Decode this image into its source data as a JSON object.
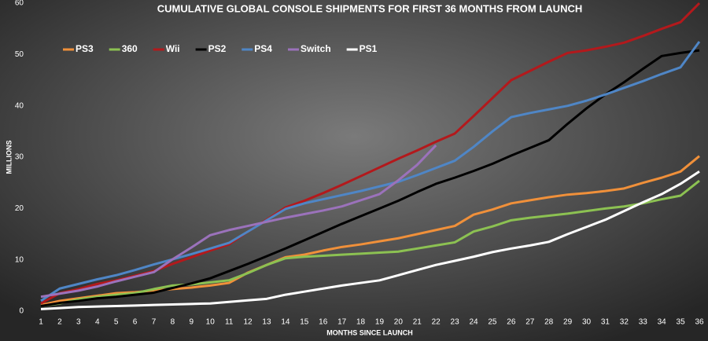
{
  "chart_data": {
    "type": "line",
    "title": "CUMULATIVE GLOBAL CONSOLE SHIPMENTS FOR FIRST 36 MONTHS FROM LAUNCH",
    "x_label": "MONTHS SINCE LAUNCH",
    "y_label": "MILLIONS",
    "x": [
      1,
      2,
      3,
      4,
      5,
      6,
      7,
      8,
      9,
      10,
      11,
      12,
      13,
      14,
      15,
      16,
      17,
      18,
      19,
      20,
      21,
      22,
      23,
      24,
      25,
      26,
      27,
      28,
      29,
      30,
      31,
      32,
      33,
      34,
      35,
      36
    ],
    "xlim": [
      1,
      36
    ],
    "xticks": [
      1,
      2,
      3,
      4,
      5,
      6,
      7,
      8,
      9,
      10,
      11,
      12,
      13,
      14,
      15,
      16,
      17,
      18,
      19,
      20,
      21,
      22,
      23,
      24,
      25,
      26,
      27,
      28,
      29,
      30,
      31,
      32,
      33,
      34,
      35,
      36
    ],
    "ylim": [
      0,
      60
    ],
    "yticks": [
      0,
      10,
      20,
      30,
      40,
      50,
      60
    ],
    "grid": false,
    "legend": "upper left",
    "series": [
      {
        "name": "PS3",
        "color": "#f0903a",
        "values": [
          1.2,
          2,
          2.5,
          3,
          3.5,
          3.7,
          4,
          4.3,
          4.6,
          5,
          5.5,
          7.5,
          9,
          10.5,
          11,
          11.8,
          12.5,
          13,
          13.6,
          14.2,
          15,
          15.8,
          16.6,
          18.8,
          19.8,
          21,
          21.6,
          22.2,
          22.7,
          23,
          23.4,
          23.9,
          25,
          26,
          27.2,
          30.2
        ]
      },
      {
        "name": "360",
        "color": "#8cc152",
        "values": [
          1,
          1.5,
          2.3,
          2.8,
          3.2,
          3.5,
          4.3,
          5,
          5.2,
          5.6,
          6,
          7.4,
          9,
          10.3,
          10.6,
          10.8,
          11,
          11.2,
          11.4,
          11.6,
          12.2,
          12.8,
          13.4,
          15.5,
          16.5,
          17.7,
          18.2,
          18.6,
          19,
          19.5,
          20,
          20.4,
          21,
          21.8,
          22.5,
          25.4
        ]
      },
      {
        "name": "Wii",
        "color": "#b3191c",
        "values": [
          1.5,
          3.5,
          4.3,
          5.3,
          6,
          6.9,
          7.8,
          9.2,
          10.5,
          11.8,
          13,
          15.5,
          17.8,
          20.2,
          21.5,
          23,
          24.6,
          26.3,
          28,
          29.7,
          31.3,
          33,
          34.6,
          38,
          41.5,
          45,
          46.8,
          48.6,
          50.3,
          50.8,
          51.5,
          52.3,
          53.6,
          55,
          56.3,
          60
        ]
      },
      {
        "name": "PS2",
        "color": "#000000",
        "values": [
          1,
          1.6,
          2,
          2.5,
          2.8,
          3.2,
          3.6,
          4.5,
          5.4,
          6.4,
          7.8,
          9.2,
          10.7,
          12.2,
          13.8,
          15.4,
          17,
          18.5,
          20,
          21.5,
          23.2,
          24.8,
          26,
          27.3,
          28.7,
          30.3,
          31.8,
          33.3,
          36.5,
          39.5,
          42.2,
          44.6,
          47.2,
          49.7,
          50.3,
          50.8
        ]
      },
      {
        "name": "PS4",
        "color": "#4f86c6",
        "values": [
          2,
          4.4,
          5.3,
          6.2,
          7,
          8,
          9.1,
          10.1,
          11.1,
          12.2,
          13.3,
          15.5,
          17.7,
          19.9,
          21,
          21.8,
          22.6,
          23.4,
          24.3,
          25.2,
          26.5,
          27.9,
          29.3,
          32,
          35,
          37.8,
          38.6,
          39.3,
          40,
          41,
          42.2,
          43.5,
          44.8,
          46.2,
          47.5,
          52.5
        ]
      },
      {
        "name": "Switch",
        "color": "#9b72bb",
        "values": [
          2.8,
          3.4,
          4,
          4.8,
          5.8,
          6.7,
          7.6,
          10.1,
          12.4,
          14.8,
          15.8,
          16.6,
          17.4,
          18.2,
          18.9,
          19.6,
          20.4,
          21.6,
          22.8,
          25.5,
          28.5,
          32.3,
          null,
          null,
          null,
          null,
          null,
          null,
          null,
          null,
          null,
          null,
          null,
          null,
          null,
          null
        ]
      },
      {
        "name": "PS1",
        "color": "#ffffff",
        "values": [
          0.4,
          0.6,
          0.8,
          0.9,
          1,
          1.1,
          1.2,
          1.3,
          1.4,
          1.5,
          1.8,
          2.1,
          2.4,
          3.2,
          3.8,
          4.4,
          5,
          5.5,
          6,
          7,
          8,
          9,
          9.8,
          10.6,
          11.5,
          12.2,
          12.8,
          13.5,
          15,
          16.4,
          17.8,
          19.5,
          21.2,
          22.8,
          24.8,
          27.2
        ]
      }
    ]
  }
}
